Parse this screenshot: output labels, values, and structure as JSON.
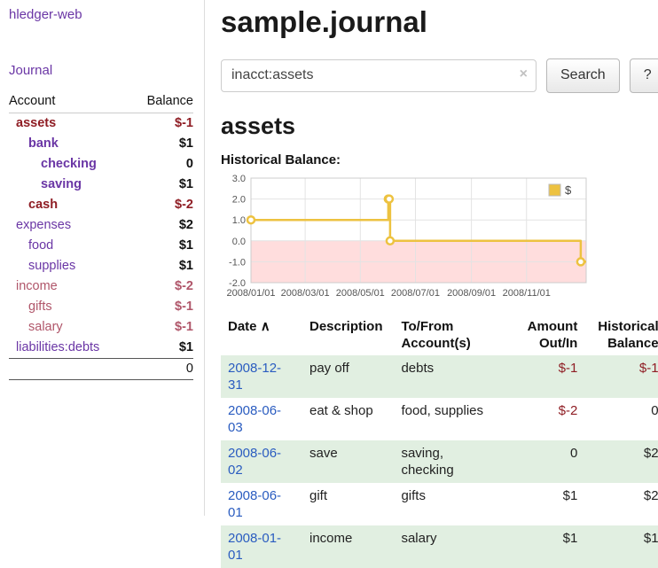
{
  "sidebar": {
    "brand": "hledger-web",
    "journal_label": "Journal",
    "accounts": {
      "col_account": "Account",
      "col_balance": "Balance",
      "rows": [
        {
          "name": "assets",
          "balance": "$-1"
        },
        {
          "name": "bank",
          "balance": "$1"
        },
        {
          "name": "checking",
          "balance": "0"
        },
        {
          "name": "saving",
          "balance": "$1"
        },
        {
          "name": "cash",
          "balance": "$-2"
        },
        {
          "name": "expenses",
          "balance": "$2"
        },
        {
          "name": "food",
          "balance": "$1"
        },
        {
          "name": "supplies",
          "balance": "$1"
        },
        {
          "name": "income",
          "balance": "$-2"
        },
        {
          "name": "gifts",
          "balance": "$-1"
        },
        {
          "name": "salary",
          "balance": "$-1"
        },
        {
          "name": "liabilities:debts",
          "balance": "$1"
        }
      ],
      "total": "0"
    }
  },
  "main": {
    "title": "sample.journal",
    "search": {
      "value": "inacct:assets",
      "clear_icon": "×",
      "button_label": "Search",
      "help_label": "?"
    },
    "section_title": "assets",
    "chart_label": "Historical Balance:"
  },
  "chart_data": {
    "type": "line",
    "title": "Historical Balance",
    "series": [
      {
        "name": "$",
        "color": "#edc240",
        "step": true,
        "points": [
          [
            "2008-01-01",
            1
          ],
          [
            "2008-06-01",
            2
          ],
          [
            "2008-06-02",
            2
          ],
          [
            "2008-06-03",
            0
          ],
          [
            "2008-12-31",
            -1
          ]
        ]
      }
    ],
    "xlim": [
      "2008-01-01",
      "2009-01-06"
    ],
    "ylim": [
      -2,
      3
    ],
    "x_ticks": [
      "2008/01/01",
      "2008/03/01",
      "2008/05/01",
      "2008/07/01",
      "2008/09/01",
      "2008/11/01"
    ],
    "y_ticks": [
      -2,
      -1,
      0,
      1,
      2,
      3
    ],
    "negative_region_color": "#ffdddd",
    "grid": true,
    "legend_position": "top-right"
  },
  "txns": {
    "headers": {
      "date": "Date",
      "sort_icon": "∧",
      "description": "Description",
      "tofrom_line1": "To/From",
      "tofrom_line2": "Account(s)",
      "amount_line1": "Amount",
      "amount_line2": "Out/In",
      "hist_line1": "Historical",
      "hist_line2": "Balance"
    },
    "rows": [
      {
        "date": "2008-12-31",
        "description": "pay off",
        "accounts": "debts",
        "amount": "$-1",
        "balance": "$-1"
      },
      {
        "date": "2008-06-03",
        "description": "eat & shop",
        "accounts": "food, supplies",
        "amount": "$-2",
        "balance": "0"
      },
      {
        "date": "2008-06-02",
        "description": "save",
        "accounts": "saving,\nchecking",
        "amount": "0",
        "balance": "$2"
      },
      {
        "date": "2008-06-01",
        "description": "gift",
        "accounts": "gifts",
        "amount": "$1",
        "balance": "$2"
      },
      {
        "date": "2008-01-01",
        "description": "income",
        "accounts": "salary",
        "amount": "$1",
        "balance": "$1"
      }
    ]
  }
}
